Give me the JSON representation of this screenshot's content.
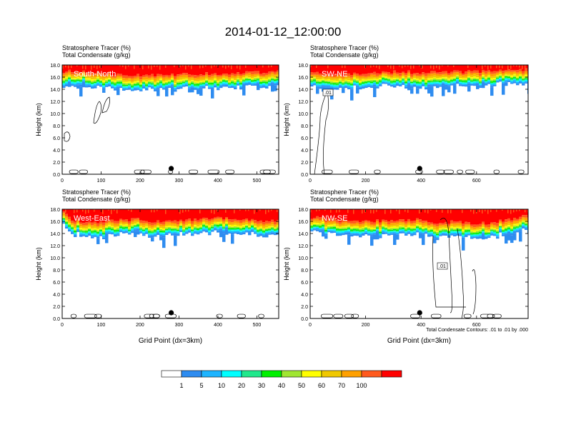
{
  "figure_title": "2014-01-12_12:00:00",
  "panel_field_labels": [
    {
      "name": "Stratosphere Tracer",
      "unit": "(%)"
    },
    {
      "name": "Total Condensate",
      "unit": "(g/kg)"
    }
  ],
  "contour_note": "Total Condensate Contours: .01 to .01 by .000",
  "contour_label": ".01",
  "colorbar": {
    "levels": [
      "1",
      "5",
      "10",
      "20",
      "30",
      "40",
      "50",
      "60",
      "70",
      "100"
    ],
    "colors": [
      "#ffffff",
      "#2e8cf0",
      "#1eb4ff",
      "#00ffff",
      "#20e88c",
      "#00f000",
      "#a0e632",
      "#ffff00",
      "#f0c800",
      "#ffa000",
      "#ff5a1e",
      "#ff0000"
    ]
  },
  "chart_data": [
    {
      "type": "heatmap",
      "panel": "top-left",
      "cross_section": "South-North",
      "title_lines": [
        "Stratosphere Tracer   (%)",
        "Total Condensate   (g/kg)"
      ],
      "xlabel": "",
      "ylabel": "Height (km)",
      "xlim": [
        0,
        556
      ],
      "ylim": [
        0,
        18
      ],
      "xticks": [
        "0",
        "100",
        "200",
        "300",
        "400",
        "500"
      ],
      "xtick_values": [
        0,
        100,
        200,
        300,
        400,
        500
      ],
      "yticks": [
        "0.0",
        "2.0",
        "4.0",
        "6.0",
        "8.0",
        "10.0",
        "12.0",
        "14.0",
        "16.0",
        "18.0"
      ],
      "center_point_x": 280,
      "tropopause_km": [
        [
          0,
          15.3
        ],
        [
          40,
          15.2
        ],
        [
          80,
          15.0
        ],
        [
          120,
          14.9
        ],
        [
          160,
          14.8
        ],
        [
          200,
          14.6
        ],
        [
          260,
          14.6
        ],
        [
          320,
          14.8
        ],
        [
          400,
          14.9
        ],
        [
          480,
          15.0
        ],
        [
          556,
          15.1
        ]
      ]
    },
    {
      "type": "heatmap",
      "panel": "top-right",
      "cross_section": "SW-NE",
      "title_lines": [
        "Stratosphere Tracer   (%)",
        "Total Condensate   (g/kg)"
      ],
      "xlabel": "",
      "ylabel": "Height (km)",
      "xlim": [
        0,
        786
      ],
      "ylim": [
        0,
        18
      ],
      "xticks": [
        "0",
        "200",
        "400",
        "600"
      ],
      "xtick_values": [
        0,
        200,
        400,
        600
      ],
      "yticks": [
        "0.0",
        "2.0",
        "4.0",
        "6.0",
        "8.0",
        "10.0",
        "12.0",
        "14.0",
        "16.0",
        "18.0"
      ],
      "center_point_x": 395,
      "tropopause_km": [
        [
          0,
          15.0
        ],
        [
          80,
          14.7
        ],
        [
          160,
          14.8
        ],
        [
          240,
          15.0
        ],
        [
          320,
          15.2
        ],
        [
          400,
          15.0
        ],
        [
          480,
          15.1
        ],
        [
          560,
          15.2
        ],
        [
          640,
          15.3
        ],
        [
          720,
          15.4
        ],
        [
          786,
          15.5
        ]
      ]
    },
    {
      "type": "heatmap",
      "panel": "bottom-left",
      "cross_section": "West-East",
      "title_lines": [
        "Stratosphere Tracer   (%)",
        "Total Condensate   (g/kg)"
      ],
      "xlabel": "Grid Point (dx=3km)",
      "ylabel": "Height (km)",
      "xlim": [
        0,
        556
      ],
      "ylim": [
        0,
        18
      ],
      "xticks": [
        "0",
        "100",
        "200",
        "300",
        "400",
        "500"
      ],
      "xtick_values": [
        0,
        100,
        200,
        300,
        400,
        500
      ],
      "yticks": [
        "0.0",
        "2.0",
        "4.0",
        "6.0",
        "8.0",
        "10.0",
        "12.0",
        "14.0",
        "16.0",
        "18.0"
      ],
      "center_point_x": 280,
      "tropopause_km": [
        [
          0,
          16.0
        ],
        [
          30,
          14.4
        ],
        [
          80,
          14.2
        ],
        [
          140,
          14.4
        ],
        [
          200,
          14.6
        ],
        [
          260,
          14.1
        ],
        [
          300,
          14.3
        ],
        [
          360,
          14.8
        ],
        [
          420,
          14.9
        ],
        [
          480,
          14.6
        ],
        [
          556,
          14.3
        ]
      ]
    },
    {
      "type": "heatmap",
      "panel": "bottom-right",
      "cross_section": "NW-SE",
      "title_lines": [
        "Stratosphere Tracer   (%)",
        "Total Condensate   (g/kg)"
      ],
      "xlabel": "Grid Point (dx=3km)",
      "ylabel": "Height (km)",
      "xlim": [
        0,
        786
      ],
      "ylim": [
        0,
        18
      ],
      "xticks": [
        "0",
        "200",
        "400",
        "600"
      ],
      "xtick_values": [
        0,
        200,
        400,
        600
      ],
      "yticks": [
        "0.0",
        "2.0",
        "4.0",
        "6.0",
        "8.0",
        "10.0",
        "12.0",
        "14.0",
        "16.0",
        "18.0"
      ],
      "center_point_x": 395,
      "tropopause_km": [
        [
          0,
          15.0
        ],
        [
          80,
          14.6
        ],
        [
          160,
          14.3
        ],
        [
          240,
          14.4
        ],
        [
          320,
          14.5
        ],
        [
          400,
          14.6
        ],
        [
          440,
          14.0
        ],
        [
          520,
          14.2
        ],
        [
          600,
          13.8
        ],
        [
          680,
          14.3
        ],
        [
          786,
          15.2
        ]
      ]
    }
  ]
}
